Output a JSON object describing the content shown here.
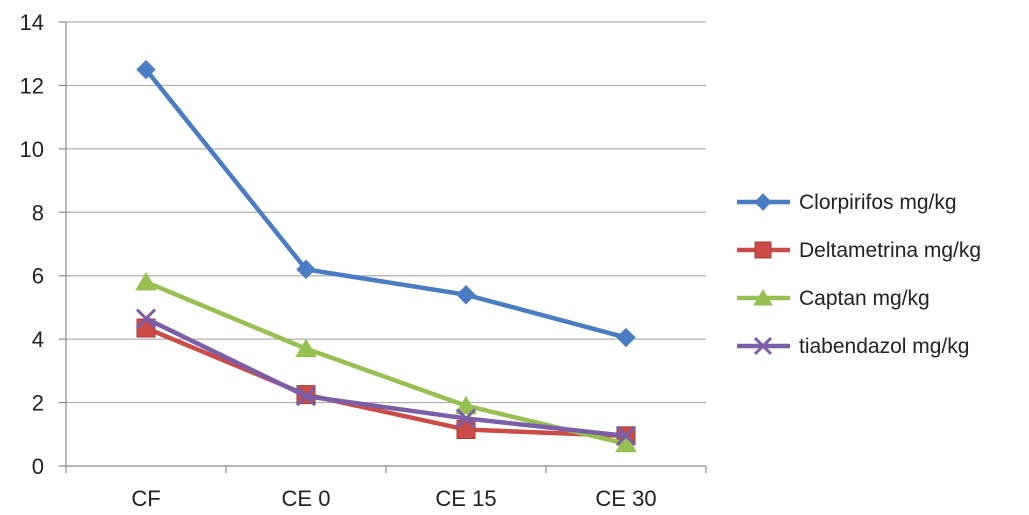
{
  "chart_data": {
    "type": "line",
    "categories": [
      "CF",
      "CE 0",
      "CE 15",
      "CE 30"
    ],
    "series": [
      {
        "name": "Clorpirifos mg/kg",
        "values": [
          12.5,
          6.2,
          5.4,
          4.05
        ],
        "color": "#4a7cc4",
        "marker": "diamond"
      },
      {
        "name": "Deltametrina mg/kg",
        "values": [
          4.35,
          2.25,
          1.15,
          0.95
        ],
        "color": "#cb4b47",
        "marker": "square"
      },
      {
        "name": "Captan mg/kg",
        "values": [
          5.8,
          3.7,
          1.9,
          0.7
        ],
        "color": "#96c152",
        "marker": "triangle"
      },
      {
        "name": "tiabendazol mg/kg",
        "values": [
          4.65,
          2.2,
          1.5,
          0.95
        ],
        "color": "#7b5ea8",
        "marker": "x"
      }
    ],
    "ylim": [
      0,
      14
    ],
    "yticks": [
      0,
      2,
      4,
      6,
      8,
      10,
      12,
      14
    ],
    "grid": true,
    "legend_position": "right"
  }
}
